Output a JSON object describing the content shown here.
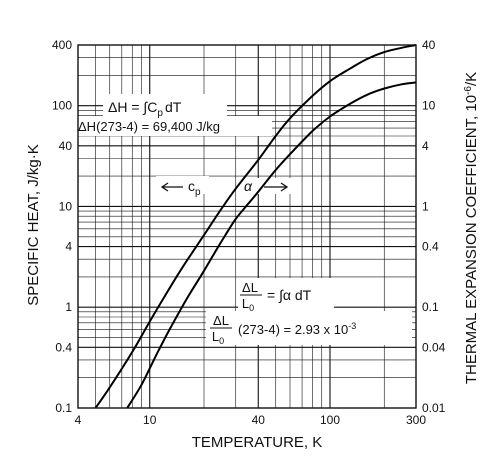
{
  "chart_data": {
    "type": "line",
    "xlabel": "TEMPERATURE, K",
    "ylabel_left": "SPECIFIC HEAT, J/kg·K",
    "ylabel_right": "THERMAL EXPANSION COEFFICIENT, 10",
    "ylabel_right_exp": "-6",
    "ylabel_right_unit": "/K",
    "x_scale": "log",
    "y_scale": "log",
    "xlim": [
      4,
      300
    ],
    "ylim_left": [
      0.1,
      400
    ],
    "ylim_right": [
      0.01,
      40
    ],
    "grid": true,
    "x_ticks": [
      {
        "v": 4,
        "label": "4"
      },
      {
        "v": 10,
        "label": "10"
      },
      {
        "v": 40,
        "label": "40"
      },
      {
        "v": 100,
        "label": "100"
      },
      {
        "v": 300,
        "label": "300"
      }
    ],
    "y_ticks_left": [
      {
        "v": 0.1,
        "label": "0.1"
      },
      {
        "v": 0.4,
        "label": "0.4"
      },
      {
        "v": 1,
        "label": "1"
      },
      {
        "v": 4,
        "label": "4"
      },
      {
        "v": 10,
        "label": "10"
      },
      {
        "v": 40,
        "label": "40"
      },
      {
        "v": 100,
        "label": "100"
      },
      {
        "v": 400,
        "label": "400"
      }
    ],
    "y_ticks_right": [
      {
        "v": 0.01,
        "label": "0.01"
      },
      {
        "v": 0.04,
        "label": "0.04"
      },
      {
        "v": 0.1,
        "label": "0.1"
      },
      {
        "v": 0.4,
        "label": "0.4"
      },
      {
        "v": 1,
        "label": "1"
      },
      {
        "v": 4,
        "label": "4"
      },
      {
        "v": 10,
        "label": "10"
      },
      {
        "v": 40,
        "label": "40"
      }
    ],
    "series": [
      {
        "name": "c",
        "name_sub": "p",
        "axis": "left",
        "points": [
          [
            5.0,
            0.1
          ],
          [
            6,
            0.16
          ],
          [
            8,
            0.36
          ],
          [
            10,
            0.72
          ],
          [
            12,
            1.25
          ],
          [
            15,
            2.4
          ],
          [
            20,
            5.2
          ],
          [
            25,
            9.5
          ],
          [
            30,
            15
          ],
          [
            40,
            29
          ],
          [
            50,
            50
          ],
          [
            60,
            75
          ],
          [
            80,
            125
          ],
          [
            100,
            175
          ],
          [
            130,
            235
          ],
          [
            160,
            290
          ],
          [
            200,
            340
          ],
          [
            250,
            375
          ],
          [
            300,
            400
          ]
        ]
      },
      {
        "name": "α",
        "axis": "right",
        "points": [
          [
            7.5,
            0.01
          ],
          [
            9,
            0.017
          ],
          [
            11,
            0.035
          ],
          [
            13,
            0.062
          ],
          [
            16,
            0.12
          ],
          [
            20,
            0.23
          ],
          [
            25,
            0.45
          ],
          [
            30,
            0.75
          ],
          [
            35,
            1.05
          ],
          [
            40,
            1.4
          ],
          [
            50,
            2.3
          ],
          [
            60,
            3.3
          ],
          [
            80,
            5.6
          ],
          [
            100,
            7.8
          ],
          [
            130,
            10.5
          ],
          [
            160,
            12.8
          ],
          [
            200,
            14.8
          ],
          [
            250,
            16.3
          ],
          [
            300,
            17
          ]
        ]
      }
    ],
    "annotations": {
      "dH_lhs": "ΔH = ∫C",
      "dH_sub": "p",
      "dH_rhs": "dT",
      "dH_value": "ΔH(273-4) = 69,400 J/kg",
      "dL_num": "ΔL",
      "dL_den": "L",
      "dL_den_sub": "0",
      "dL_eq": "= ∫α dT",
      "dL_val_num": "ΔL",
      "dL_val_den": "L",
      "dL_val_den_sub": "0",
      "dL_val_text": "(273-4) = 2.93 x 10",
      "dL_val_exp": "-3",
      "cp_label": "c",
      "cp_label_sub": "p",
      "alpha_label": "α"
    }
  }
}
